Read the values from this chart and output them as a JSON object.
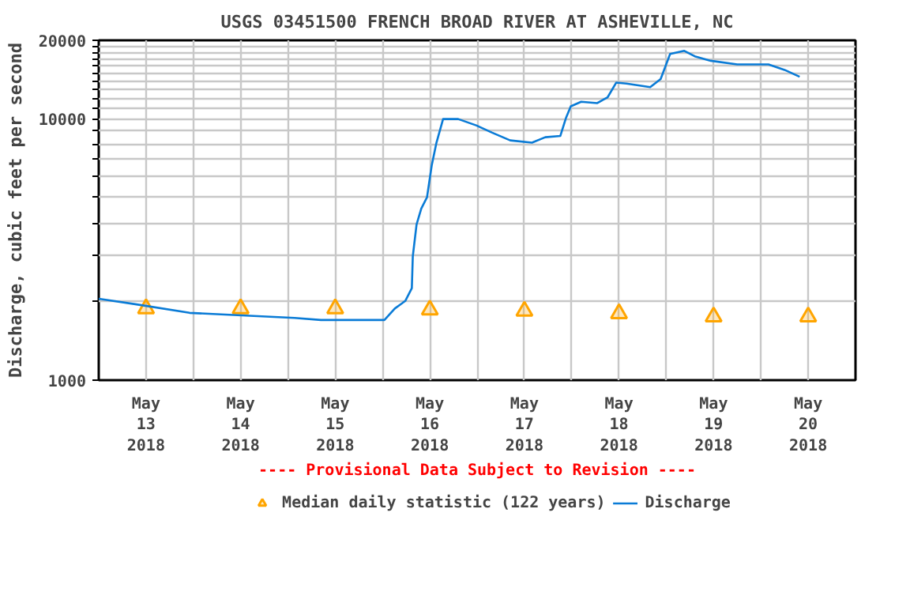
{
  "chart_data": {
    "type": "line",
    "title": "USGS 03451500 FRENCH BROAD RIVER AT ASHEVILLE, NC",
    "ylabel": "Discharge, cubic feet per second",
    "annotations": [
      "---- Provisional Data Subject to Revision ----"
    ],
    "log": "y",
    "grid": true,
    "legend": "bottom",
    "xlim": [
      "2018-05-13T00:00",
      "2018-05-21T00:00"
    ],
    "xticks": [
      {
        "value": "2018-05-13T12:00",
        "label": "May\n13\n2018"
      },
      {
        "value": "2018-05-14T12:00",
        "label": "May\n14\n2018"
      },
      {
        "value": "2018-05-15T12:00",
        "label": "May\n15\n2018"
      },
      {
        "value": "2018-05-16T12:00",
        "label": "May\n16\n2018"
      },
      {
        "value": "2018-05-17T12:00",
        "label": "May\n17\n2018"
      },
      {
        "value": "2018-05-18T12:00",
        "label": "May\n18\n2018"
      },
      {
        "value": "2018-05-19T12:00",
        "label": "May\n19\n2018"
      },
      {
        "value": "2018-05-20T12:00",
        "label": "May\n20\n2018"
      },
      {
        "value": "2018-05-14T00:00",
        "label": null
      },
      {
        "value": "2018-05-15T00:00",
        "label": null
      },
      {
        "value": "2018-05-16T00:00",
        "label": null
      },
      {
        "value": "2018-05-17T00:00",
        "label": null
      },
      {
        "value": "2018-05-18T00:00",
        "label": null
      },
      {
        "value": "2018-05-19T00:00",
        "label": null
      },
      {
        "value": "2018-05-20T00:00",
        "label": null
      }
    ],
    "ylim": [
      1000,
      20000
    ],
    "yticks": [
      1000,
      {
        "value": 2000,
        "label": null
      },
      {
        "value": 3000,
        "label": null
      },
      {
        "value": 4000,
        "label": null
      },
      {
        "value": 5000,
        "label": null
      },
      {
        "value": 6000,
        "label": null
      },
      {
        "value": 7000,
        "label": null
      },
      {
        "value": 8000,
        "label": null
      },
      {
        "value": 9000,
        "label": null
      },
      10000,
      {
        "value": 11000,
        "label": null
      },
      {
        "value": 12000,
        "label": null
      },
      {
        "value": 13000,
        "label": null
      },
      {
        "value": 14000,
        "label": null
      },
      {
        "value": 15000,
        "label": null
      },
      {
        "value": 16000,
        "label": null
      },
      {
        "value": 17000,
        "label": null
      },
      {
        "value": 18000,
        "label": null
      },
      {
        "value": 19000,
        "label": null
      },
      20000
    ],
    "series": [
      {
        "name": "Median daily statistic (122 years)",
        "type": "scatter",
        "marker": "triangle",
        "color": "#ffa500",
        "x": [
          "2018-05-13T12:00",
          "2018-05-14T12:00",
          "2018-05-15T12:00",
          "2018-05-16T12:00",
          "2018-05-17T12:00",
          "2018-05-18T12:00",
          "2018-05-19T12:00",
          "2018-05-20T12:00"
        ],
        "values": [
          1880,
          1880,
          1880,
          1860,
          1840,
          1800,
          1750,
          1750
        ]
      },
      {
        "name": "Discharge",
        "color": "#0a7bd6",
        "x": [
          "2018-05-13T00:00",
          "2018-05-13T09:36",
          "2018-05-13T23:02",
          "2018-05-14T12:14",
          "2018-05-15T01:41",
          "2018-05-15T08:24",
          "2018-05-16T00:29",
          "2018-05-16T03:07",
          "2018-05-16T05:46",
          "2018-05-16T07:26",
          "2018-05-16T07:41",
          "2018-05-16T08:38",
          "2018-05-16T09:50",
          "2018-05-16T11:17",
          "2018-05-16T12:29",
          "2018-05-16T13:41",
          "2018-05-16T15:22",
          "2018-05-16T19:12",
          "2018-05-16T23:46",
          "2018-05-17T03:50",
          "2018-05-17T08:24",
          "2018-05-17T13:55",
          "2018-05-17T17:17",
          "2018-05-17T21:07",
          "2018-05-17T22:34",
          "2018-05-17T23:46",
          "2018-05-18T02:24",
          "2018-05-18T06:29",
          "2018-05-18T09:07",
          "2018-05-18T11:17",
          "2018-05-18T13:55",
          "2018-05-18T19:55",
          "2018-05-18T22:34",
          "2018-05-19T00:58",
          "2018-05-19T04:34",
          "2018-05-19T07:12",
          "2018-05-19T11:17",
          "2018-05-19T18:00",
          "2018-05-20T01:55",
          "2018-05-20T06:00",
          "2018-05-20T09:50"
        ],
        "values": [
          2050,
          1950,
          1810,
          1770,
          1730,
          1700,
          1700,
          1880,
          2010,
          2250,
          2980,
          3940,
          4540,
          5010,
          6640,
          8110,
          9990,
          9990,
          9450,
          8860,
          8280,
          8110,
          8510,
          8610,
          10110,
          11180,
          11640,
          11500,
          12110,
          13770,
          13660,
          13230,
          14220,
          17730,
          18230,
          17380,
          16700,
          16170,
          16170,
          15410,
          14510
        ]
      }
    ]
  }
}
